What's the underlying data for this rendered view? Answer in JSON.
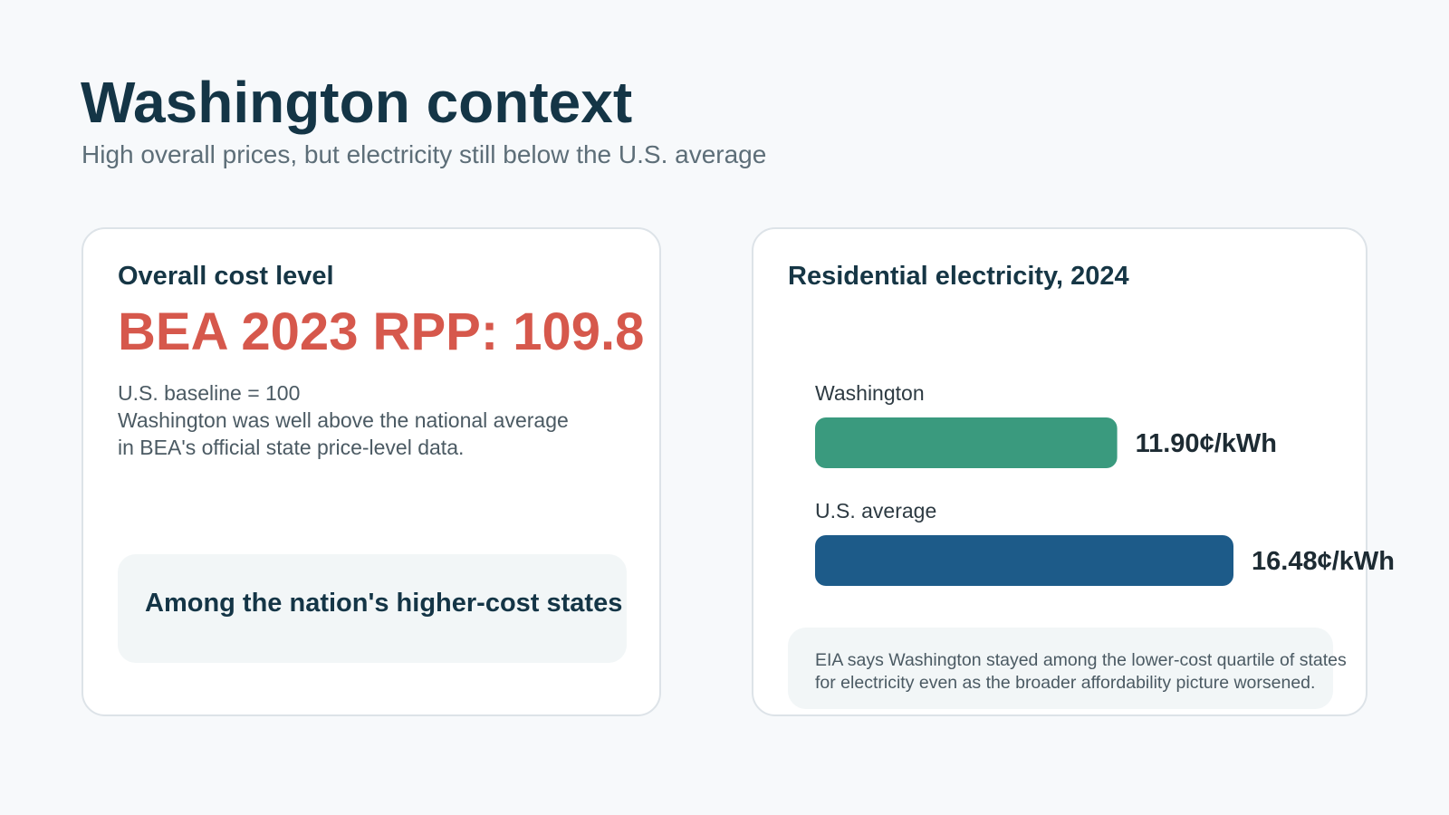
{
  "header": {
    "title": "Washington context",
    "subtitle": "High overall prices, but electricity still below the U.S. average"
  },
  "cost_card": {
    "heading": "Overall cost level",
    "metric": "BEA 2023 RPP: 109.8",
    "desc_lines": [
      "U.S. baseline = 100",
      "Washington was well above the national average",
      "in BEA's official state price-level data."
    ],
    "callout": "Among the nation's higher-cost states"
  },
  "electricity_card": {
    "heading": "Residential electricity, 2024",
    "note_lines": [
      "EIA says Washington stayed among the lower-cost quartile of states",
      "for electricity even as the broader affordability picture worsened."
    ]
  },
  "colors": {
    "washington_bar": "#3a9a7e",
    "us_bar": "#1d5b89",
    "metric": "#d6584c",
    "title": "#143546"
  },
  "chart_data": {
    "type": "bar",
    "orientation": "horizontal",
    "title": "Residential electricity, 2024",
    "categories": [
      "Washington",
      "U.S. average"
    ],
    "values": [
      11.9,
      16.48
    ],
    "value_labels": [
      "11.90¢/kWh",
      "16.48¢/kWh"
    ],
    "unit": "¢/kWh",
    "xlim": [
      0,
      16.48
    ],
    "grid": false,
    "legend": "none"
  }
}
